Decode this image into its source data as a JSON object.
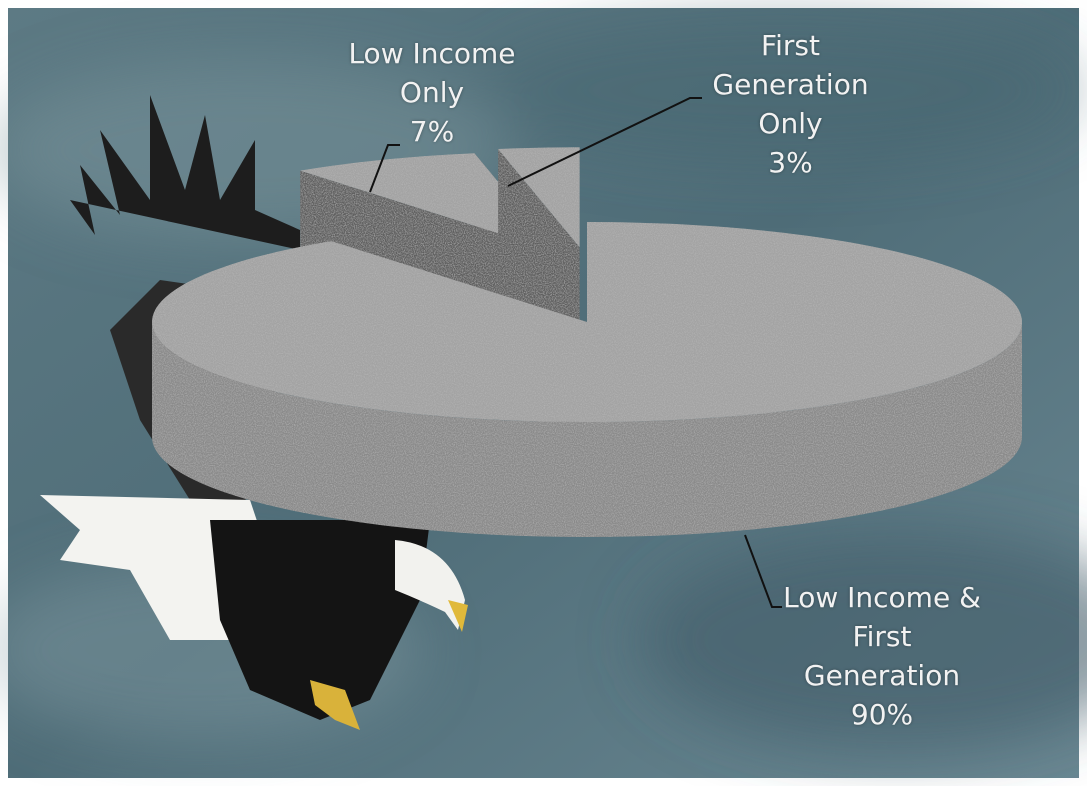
{
  "chart_data": {
    "type": "pie",
    "categories": [
      "Low Income Only",
      "First Generation Only",
      "Low Income & First Generation"
    ],
    "values": [
      7,
      3,
      90
    ],
    "value_labels": [
      "7%",
      "3%",
      "90%"
    ]
  }
}
